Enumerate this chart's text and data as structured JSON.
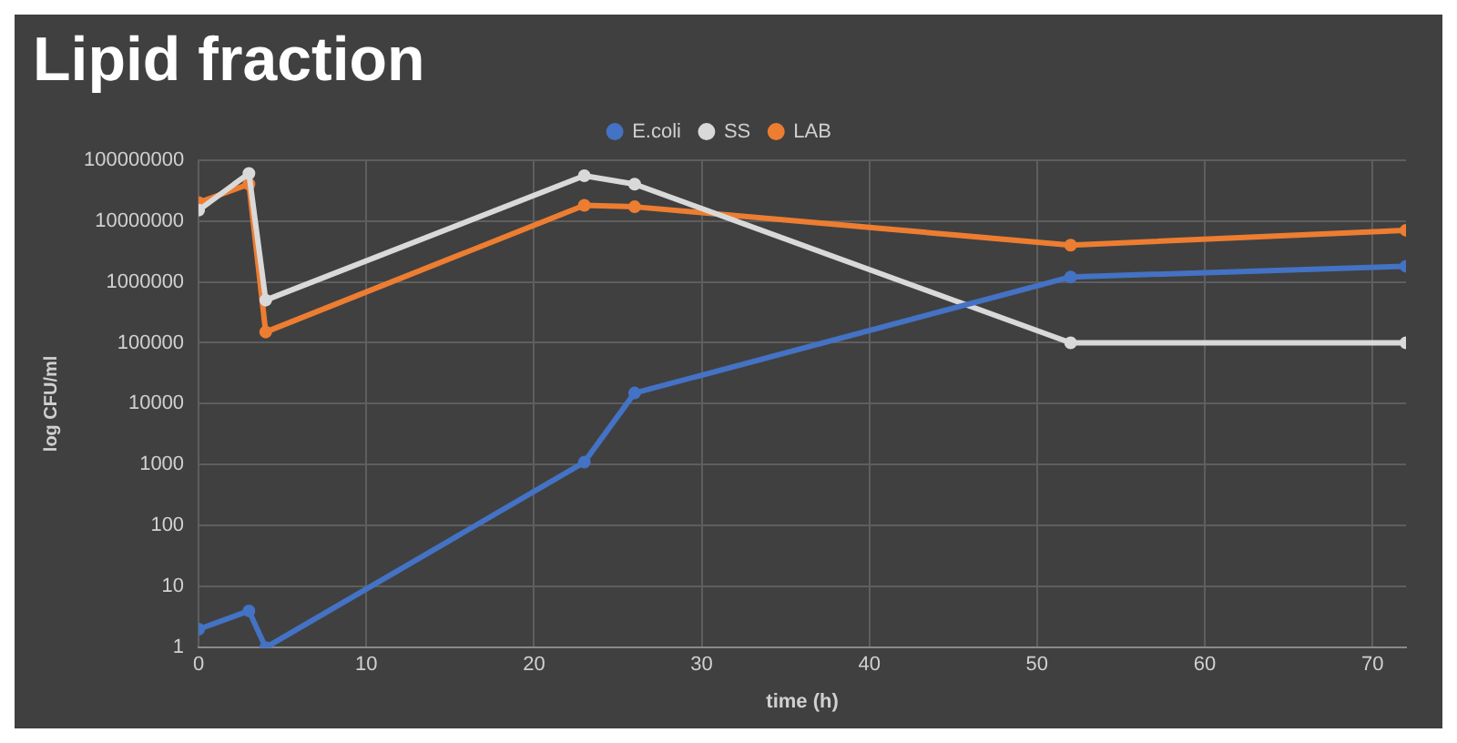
{
  "chart_data": {
    "type": "line",
    "title": "Lipid fraction",
    "xlabel": "time (h)",
    "ylabel": "log CFU/ml",
    "log": "y",
    "grid": true,
    "legend": "top",
    "marker": "circle",
    "line_style": "solid",
    "x": [
      0,
      3,
      4,
      23,
      26,
      52,
      72
    ],
    "xlim": [
      0,
      72
    ],
    "xticks": [
      0,
      10,
      20,
      30,
      40,
      50,
      60,
      70
    ],
    "ylim": [
      1,
      100000000
    ],
    "yticks": [
      1,
      10,
      100,
      1000,
      10000,
      100000,
      1000000,
      10000000,
      100000000
    ],
    "series": [
      {
        "name": "E.coli",
        "color": "#4472c4",
        "values": [
          2,
          4,
          1,
          1100,
          15000,
          1200000,
          1800000
        ]
      },
      {
        "name": "SS",
        "color": "#d9d9d9",
        "values": [
          15000000,
          60000000,
          500000,
          55000000,
          40000000,
          100000,
          100000
        ]
      },
      {
        "name": "LAB",
        "color": "#ed7d31",
        "values": [
          20000000,
          40000000,
          150000,
          18000000,
          17000000,
          4000000,
          7000000
        ]
      }
    ]
  }
}
